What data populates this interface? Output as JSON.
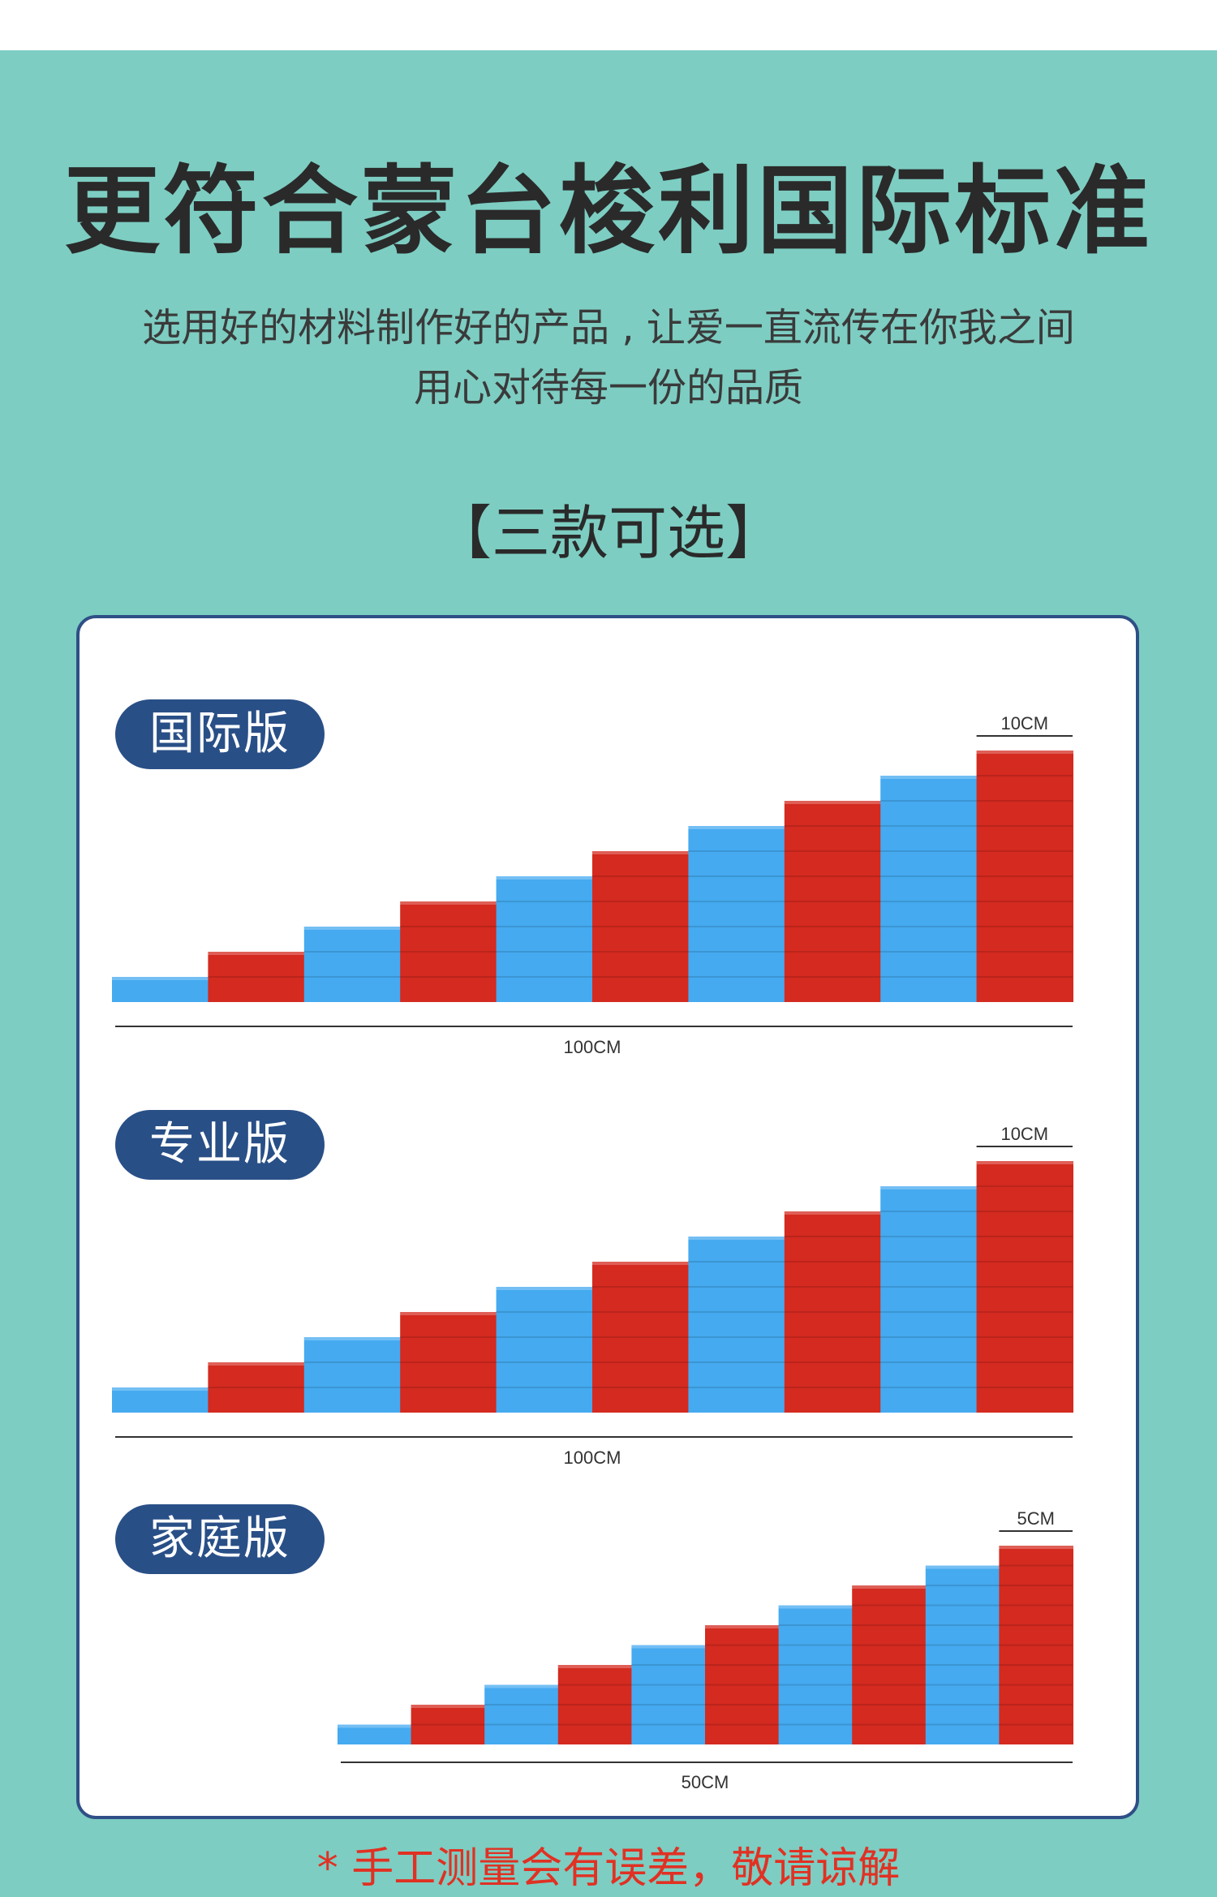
{
  "headline": "更符合蒙台梭利国际标准",
  "subtitle_line1": "选用好的材料制作好的产品 , 让爱一直流传在你我之间",
  "subtitle_line2": "用心对待每一份的品质",
  "options_title": "【三款可选】",
  "versions": [
    {
      "name": "国际版",
      "top_dimension": "10CM",
      "base_dimension": "100CM",
      "steps": 10
    },
    {
      "name": "专业版",
      "top_dimension": "10CM",
      "base_dimension": "100CM",
      "steps": 10
    },
    {
      "name": "家庭版",
      "top_dimension": "5CM",
      "base_dimension": "50CM",
      "steps": 10
    }
  ],
  "colors": {
    "blue": "#45aaf0",
    "red": "#d42a1f",
    "badge": "#294f87",
    "background": "#7dcdc2",
    "note": "#e03123"
  },
  "footnote": "* 手工测量会有误差，敬请谅解"
}
